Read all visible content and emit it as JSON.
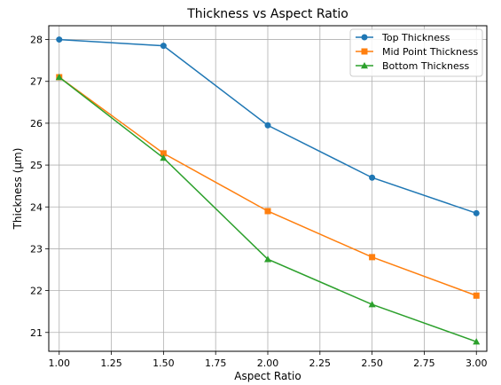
{
  "chart_data": {
    "type": "line",
    "title": "Thickness vs Aspect Ratio",
    "xlabel": "Aspect Ratio",
    "ylabel": "Thickness (µm)",
    "x": [
      1.0,
      1.5,
      2.0,
      2.5,
      3.0
    ],
    "xlim": [
      0.95,
      3.05
    ],
    "ylim": [
      20.55,
      28.33
    ],
    "xticks": [
      "1.00",
      "1.25",
      "1.50",
      "1.75",
      "2.00",
      "2.25",
      "2.50",
      "2.75",
      "3.00"
    ],
    "xtick_values": [
      1.0,
      1.25,
      1.5,
      1.75,
      2.0,
      2.25,
      2.5,
      2.75,
      3.0
    ],
    "yticks": [
      "21",
      "22",
      "23",
      "24",
      "25",
      "26",
      "27",
      "28"
    ],
    "ytick_values": [
      21,
      22,
      23,
      24,
      25,
      26,
      27,
      28
    ],
    "grid": true,
    "legend_position": "top-right",
    "series": [
      {
        "name": "Top Thickness",
        "values": [
          28.0,
          27.85,
          25.95,
          24.7,
          23.85
        ],
        "color": "#1f77b4",
        "marker": "circle"
      },
      {
        "name": "Mid Point Thickness",
        "values": [
          27.1,
          25.28,
          23.9,
          22.8,
          21.88
        ],
        "color": "#ff7f0e",
        "marker": "square"
      },
      {
        "name": "Bottom Thickness",
        "values": [
          27.1,
          25.17,
          22.75,
          21.67,
          20.78
        ],
        "color": "#2ca02c",
        "marker": "triangle"
      }
    ]
  }
}
